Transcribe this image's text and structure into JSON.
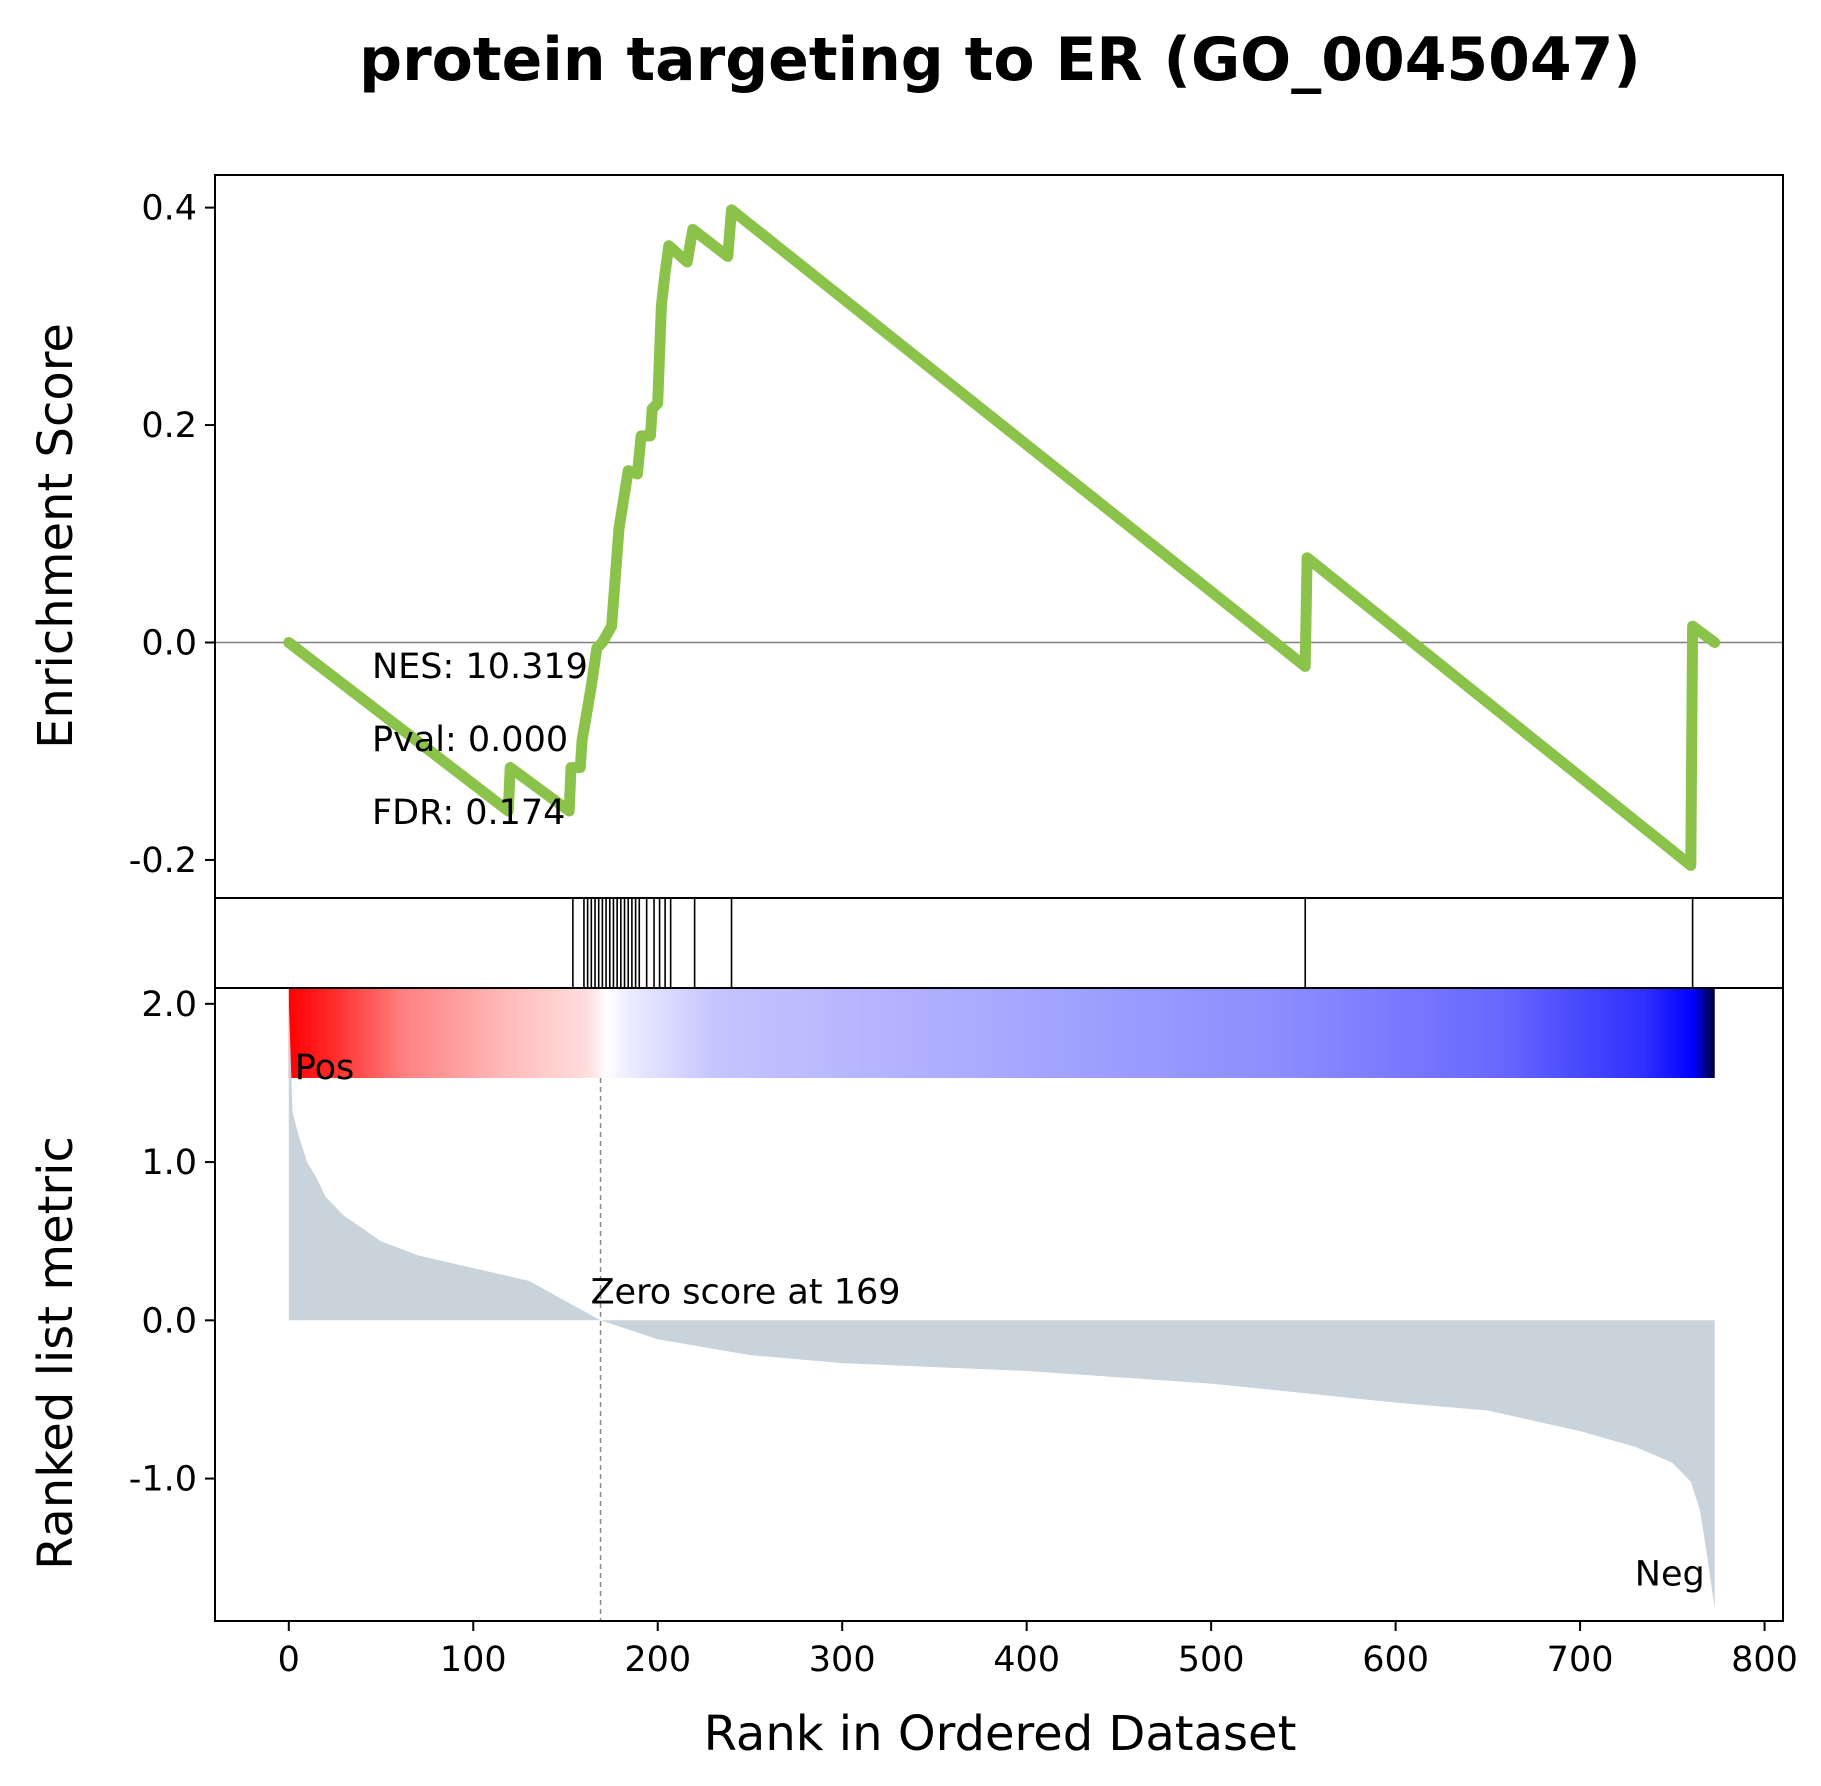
{
  "chart_data": {
    "type": "line",
    "title": "protein targeting to ER (GO_0045047)",
    "xlabel": "Rank in Ordered Dataset",
    "x_ticks": [
      0,
      100,
      200,
      300,
      400,
      500,
      600,
      700,
      800
    ],
    "xlim": [
      -40,
      810
    ],
    "enrichment": {
      "ylabel": "Enrichment Score",
      "ylim": [
        -0.235,
        0.43
      ],
      "y_ticks": [
        {
          "value": 0.4,
          "label": "0.4"
        },
        {
          "value": 0.2,
          "label": "0.2"
        },
        {
          "value": 0.0,
          "label": "0.0"
        },
        {
          "value": -0.2,
          "label": "-0.2"
        }
      ],
      "line_color": "#8bc34a",
      "es_points": [
        [
          0,
          0.0
        ],
        [
          119,
          -0.155
        ],
        [
          120,
          -0.115
        ],
        [
          152,
          -0.155
        ],
        [
          153,
          -0.115
        ],
        [
          158,
          -0.115
        ],
        [
          159,
          -0.09
        ],
        [
          164,
          -0.04
        ],
        [
          167,
          -0.005
        ],
        [
          170,
          0.0
        ],
        [
          175,
          0.015
        ],
        [
          179,
          0.105
        ],
        [
          184,
          0.158
        ],
        [
          189,
          0.155
        ],
        [
          191,
          0.19
        ],
        [
          196,
          0.19
        ],
        [
          197,
          0.215
        ],
        [
          200,
          0.22
        ],
        [
          202,
          0.31
        ],
        [
          204,
          0.34
        ],
        [
          206,
          0.365
        ],
        [
          216,
          0.35
        ],
        [
          219,
          0.38
        ],
        [
          238,
          0.355
        ],
        [
          240,
          0.398
        ],
        [
          551,
          -0.022
        ],
        [
          552,
          0.078
        ],
        [
          760,
          -0.205
        ],
        [
          761,
          0.015
        ],
        [
          773,
          0.0
        ]
      ],
      "nes_text": "NES: 10.319",
      "pval_text": "Pval: 0.000",
      "fdr_text": "FDR: 0.174"
    },
    "hits": [
      160,
      154,
      162,
      164,
      166,
      168,
      170,
      172,
      174,
      176,
      178,
      180,
      182,
      184,
      186,
      188,
      190,
      194,
      198,
      201,
      204,
      207,
      220,
      240,
      551,
      761
    ],
    "ranked_metric": {
      "ylabel": "Ranked list metric",
      "ylim": [
        -1.9,
        2.1
      ],
      "y_ticks": [
        {
          "value": 2.0,
          "label": "2.0"
        },
        {
          "value": 1.0,
          "label": "1.0"
        },
        {
          "value": 0.0,
          "label": "0.0"
        },
        {
          "value": -1.0,
          "label": "-1.0"
        }
      ],
      "fill_color": "#c9d3dc",
      "metric_points": [
        [
          0,
          2.02
        ],
        [
          2,
          1.32
        ],
        [
          5,
          1.18
        ],
        [
          10,
          1.0
        ],
        [
          15,
          0.9
        ],
        [
          20,
          0.78
        ],
        [
          30,
          0.66
        ],
        [
          40,
          0.58
        ],
        [
          50,
          0.5
        ],
        [
          70,
          0.41
        ],
        [
          100,
          0.33
        ],
        [
          130,
          0.25
        ],
        [
          169,
          0.0
        ],
        [
          200,
          -0.12
        ],
        [
          250,
          -0.22
        ],
        [
          300,
          -0.27
        ],
        [
          400,
          -0.32
        ],
        [
          500,
          -0.4
        ],
        [
          600,
          -0.52
        ],
        [
          650,
          -0.57
        ],
        [
          700,
          -0.7
        ],
        [
          730,
          -0.8
        ],
        [
          750,
          -0.9
        ],
        [
          760,
          -1.02
        ],
        [
          765,
          -1.2
        ],
        [
          769,
          -1.5
        ],
        [
          773,
          -1.82
        ]
      ],
      "zero_cross_rank": 169,
      "zero_text": "Zero score at 169",
      "pos_label": "Pos",
      "neg_label": "Neg",
      "pos_color": "#ff0000",
      "neg_color": "#0000ff"
    }
  }
}
